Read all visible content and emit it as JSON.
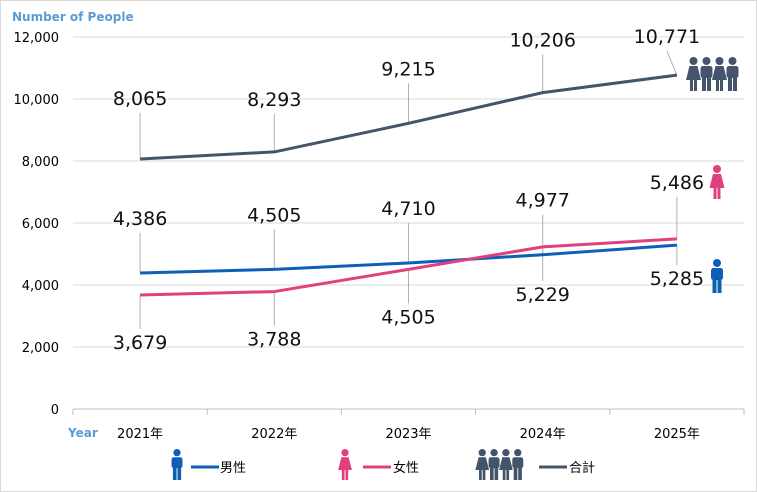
{
  "chart_data": {
    "type": "line",
    "ylabel": "Number of People",
    "xlabel": "Year",
    "categories": [
      "2021年",
      "2022年",
      "2023年",
      "2024年",
      "2025年"
    ],
    "ylim": [
      0,
      12000
    ],
    "yticks": [
      0,
      2000,
      4000,
      6000,
      8000,
      10000,
      12000
    ],
    "ytick_labels": [
      "0",
      "2,000",
      "4,000",
      "6,000",
      "8,000",
      "10,000",
      "12,000"
    ],
    "grid": true,
    "legend_position": "bottom",
    "series": [
      {
        "name": "男性",
        "color": "#0e5fb5",
        "icon": "person-male-icon",
        "values": [
          4386,
          4505,
          4710,
          4977,
          5285
        ],
        "labels": [
          "4,386",
          "4,505",
          "4,710",
          "4,977",
          "5,285"
        ]
      },
      {
        "name": "女性",
        "color": "#e0407e",
        "icon": "person-female-icon",
        "values": [
          3679,
          3788,
          4505,
          5229,
          5486
        ],
        "labels": [
          "3,679",
          "3,788",
          "4,505",
          "5,229",
          "5,486"
        ]
      },
      {
        "name": "合計",
        "color": "#44546a",
        "icon": "people-group-icon",
        "values": [
          8065,
          8293,
          9215,
          10206,
          10771
        ],
        "labels": [
          "8,065",
          "8,293",
          "9,215",
          "10,206",
          "10,771"
        ]
      }
    ]
  }
}
